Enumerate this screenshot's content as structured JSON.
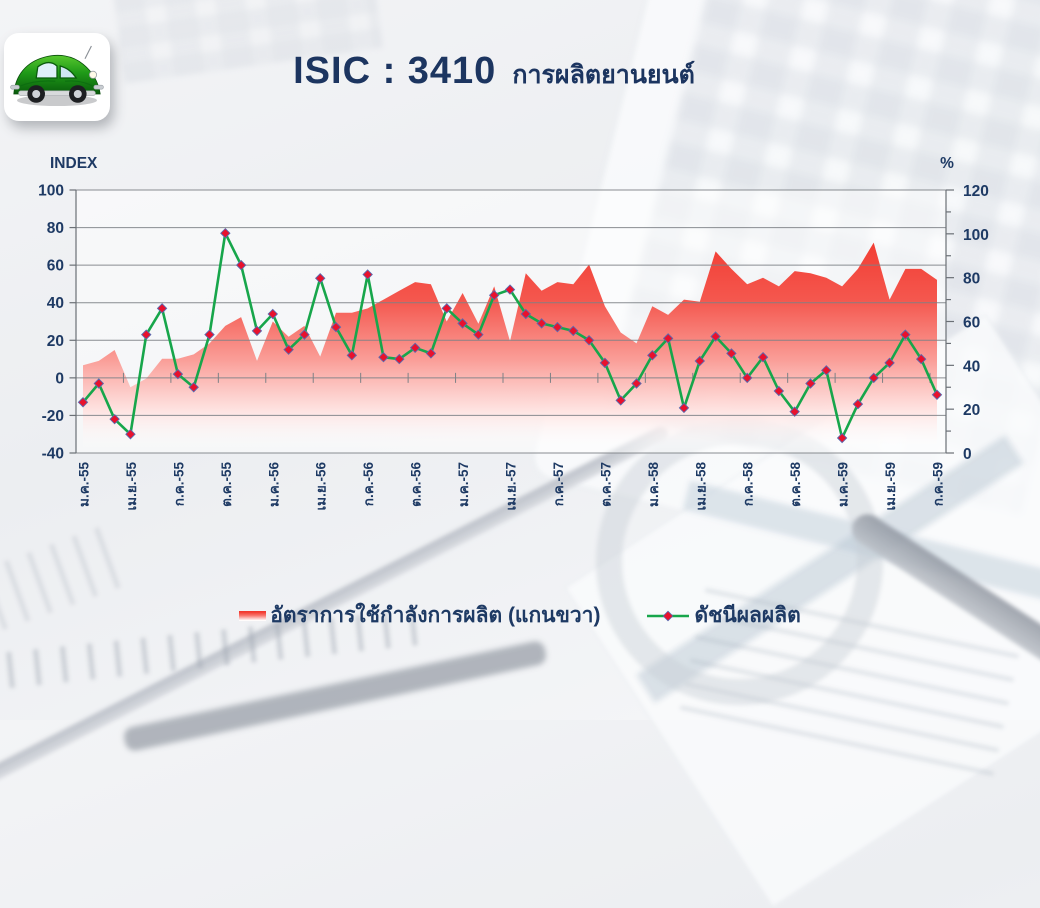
{
  "header": {
    "icon": "green-beetle-car-icon"
  },
  "title": {
    "isic": "ISIC : 3410",
    "subtitle": "การผลิตยานยนต์"
  },
  "legend": {
    "items": [
      {
        "label": "อัตราการใช้กำลังการผลิต  (แกนขวา)",
        "swatch": "red-gradient-area"
      },
      {
        "label": "ดัชนีผลผลิต",
        "swatch": "green-line-red-diamond"
      }
    ]
  },
  "colors": {
    "navy_text": "#1e3a64",
    "line_green": "#17a64b",
    "marker_red": "#e8112d",
    "area_red_top": "#f23b31",
    "gridline_gray": "#7d8186"
  },
  "chart_data": {
    "type": "area+line",
    "x_tick_labels": [
      "ม.ค.-55",
      "เม.ย.-55",
      "ก.ค.-55",
      "ต.ค.-55",
      "ม.ค.-56",
      "เม.ย.-56",
      "ก.ค.-56",
      "ต.ค.-56",
      "ม.ค.-57",
      "เม.ย.-57",
      "ก.ค.-57",
      "ต.ค.-57",
      "ม.ค.-58",
      "เม.ย.-58",
      "ก.ค.-58",
      "ต.ค.-58",
      "ม.ค.-59",
      "เม.ย.-59",
      "ก.ค.-59"
    ],
    "x_tick_every": 3,
    "left_axis": {
      "label": "INDEX",
      "min": -40,
      "max": 100,
      "step": 20
    },
    "right_axis": {
      "label": "%",
      "min": 0,
      "max": 120,
      "step": 20,
      "minor_step": 10
    },
    "grid": true,
    "legend_position": "bottom",
    "series": [
      {
        "name": "อัตราการใช้กำลังการผลิต (แกนขวา)",
        "type": "area",
        "axis": "right",
        "color": "#f23b31",
        "values": [
          40,
          42,
          47,
          30,
          34,
          43,
          43,
          45,
          50,
          58,
          62,
          42,
          60,
          53,
          58,
          44,
          64,
          64,
          66,
          70,
          74,
          78,
          77,
          60,
          73,
          59,
          76,
          51,
          82,
          74,
          78,
          77,
          86,
          67,
          55,
          50,
          67,
          63,
          70,
          69,
          92,
          84,
          77,
          80,
          76,
          83,
          82,
          80,
          76,
          84,
          96,
          70,
          84,
          84,
          79
        ]
      },
      {
        "name": "ดัชนีผลผลิต",
        "type": "line",
        "axis": "left",
        "color": "#17a64b",
        "marker": "red-diamond",
        "values": [
          -13,
          -3,
          -22,
          -30,
          23,
          37,
          2,
          -5,
          23,
          77,
          60,
          25,
          34,
          15,
          23,
          53,
          27,
          12,
          55,
          11,
          10,
          16,
          13,
          37,
          29,
          23,
          44,
          47,
          34,
          29,
          27,
          25,
          20,
          8,
          -12,
          -3,
          12,
          21,
          -16,
          9,
          22,
          13,
          0,
          11,
          -7,
          -18,
          -3,
          4,
          -32,
          -14,
          0,
          8,
          23,
          10,
          -9
        ]
      }
    ]
  }
}
